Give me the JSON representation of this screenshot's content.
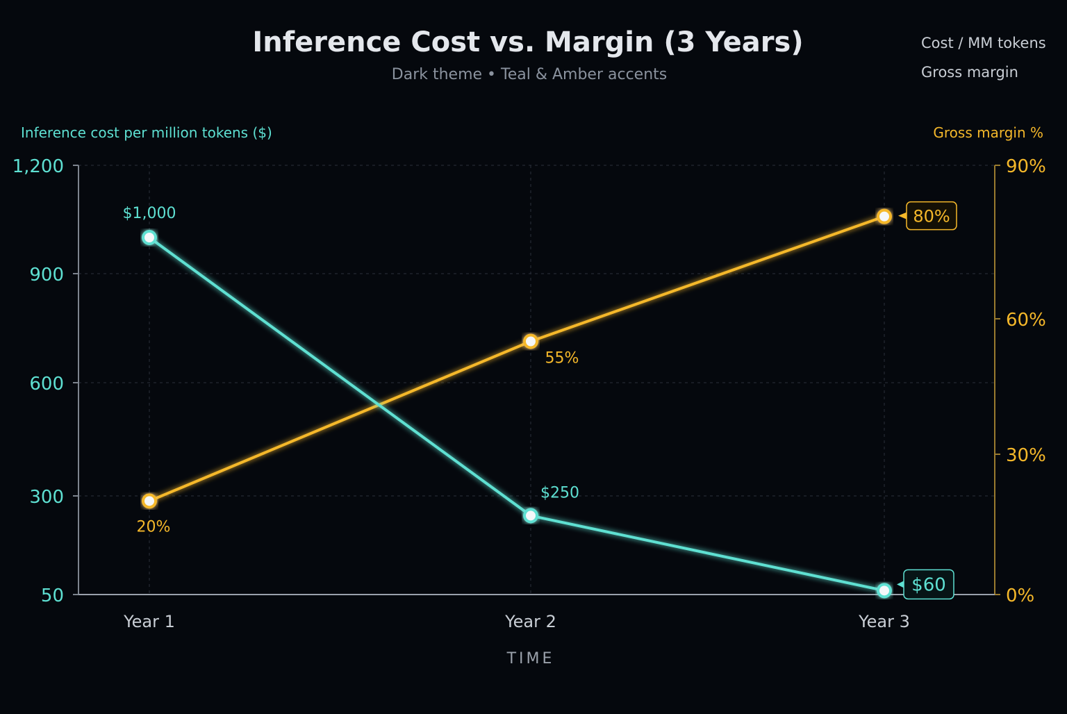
{
  "chart_data": {
    "type": "line",
    "title": "Inference Cost vs. Margin (3 Years)",
    "subtitle": "Dark theme • Teal & Amber accents",
    "xlabel": "TIME",
    "ylabel_left": "Inference cost per million tokens ($)",
    "ylabel_right": "Gross margin %",
    "categories": [
      "Year 1",
      "Year 2",
      "Year 3"
    ],
    "left_axis": {
      "ticks": [
        1200,
        900,
        600,
        300,
        50
      ],
      "tick_labels": [
        "1,200",
        "900",
        "600",
        "300",
        "50"
      ]
    },
    "right_axis": {
      "ticks": [
        90,
        60,
        30,
        0
      ],
      "tick_labels": [
        "90%",
        "60%",
        "30%",
        "0%"
      ]
    },
    "grid": true,
    "legend_position": "top-right",
    "series": [
      {
        "name": "Cost / MM tokens",
        "axis": "left",
        "color": "#5ee0d2",
        "values": [
          1000,
          250,
          60
        ],
        "data_labels": [
          "$1,000",
          "$250",
          "$60"
        ]
      },
      {
        "name": "Gross margin",
        "axis": "right",
        "color": "#f5b82a",
        "values": [
          20,
          55,
          80
        ],
        "data_labels": [
          "20%",
          "55%",
          "80%"
        ]
      }
    ]
  }
}
